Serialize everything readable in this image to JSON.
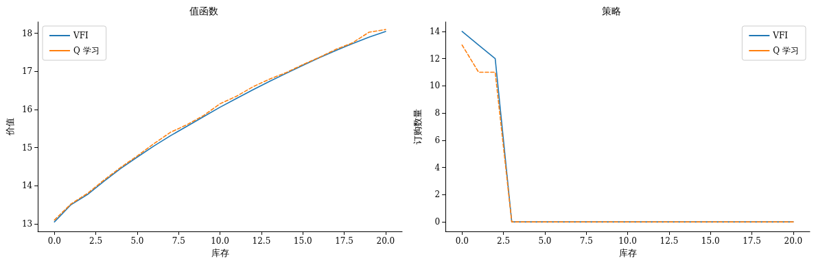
{
  "chart_data": [
    {
      "type": "line",
      "title": "值函数",
      "xlabel": "库存",
      "ylabel": "价值",
      "x": [
        0,
        1,
        2,
        3,
        4,
        5,
        6,
        7,
        8,
        9,
        10,
        11,
        12,
        13,
        14,
        15,
        16,
        17,
        18,
        19,
        20
      ],
      "series": [
        {
          "name": "VFI",
          "color": "#1f77b4",
          "line_style": "solid",
          "values": [
            13.05,
            13.5,
            13.77,
            14.12,
            14.45,
            14.75,
            15.04,
            15.31,
            15.56,
            15.81,
            16.06,
            16.29,
            16.52,
            16.74,
            16.95,
            17.16,
            17.36,
            17.55,
            17.73,
            17.9,
            18.05
          ]
        },
        {
          "name": "Q 学习",
          "color": "#ff7f0e",
          "line_style": "dashed",
          "values": [
            13.1,
            13.52,
            13.8,
            14.15,
            14.48,
            14.78,
            15.1,
            15.4,
            15.6,
            15.84,
            16.15,
            16.35,
            16.6,
            16.8,
            16.97,
            17.18,
            17.37,
            17.58,
            17.75,
            18.03,
            18.1
          ]
        }
      ],
      "xlim": [
        -1,
        21
      ],
      "xticks": [
        {
          "value": 0,
          "label": "0.0"
        },
        {
          "value": 2.5,
          "label": "2.5"
        },
        {
          "value": 5,
          "label": "5.0"
        },
        {
          "value": 7.5,
          "label": "7.5"
        },
        {
          "value": 10,
          "label": "10.0"
        },
        {
          "value": 12.5,
          "label": "12.5"
        },
        {
          "value": 15,
          "label": "15.0"
        },
        {
          "value": 17.5,
          "label": "17.5"
        },
        {
          "value": 20,
          "label": "20.0"
        }
      ],
      "ylim": [
        12.8,
        18.3
      ],
      "yticks": [
        13,
        14,
        15,
        16,
        17,
        18
      ],
      "legend": "top left",
      "grid": false,
      "marker": "none"
    },
    {
      "type": "line",
      "title": "策略",
      "xlabel": "库存",
      "ylabel": "订购数量",
      "x": [
        0,
        1,
        2,
        3,
        4,
        5,
        6,
        7,
        8,
        9,
        10,
        11,
        12,
        13,
        14,
        15,
        16,
        17,
        18,
        19,
        20
      ],
      "series": [
        {
          "name": "VFI",
          "color": "#1f77b4",
          "line_style": "solid",
          "values": [
            14,
            13,
            12,
            0,
            0,
            0,
            0,
            0,
            0,
            0,
            0,
            0,
            0,
            0,
            0,
            0,
            0,
            0,
            0,
            0,
            0
          ]
        },
        {
          "name": "Q 学习",
          "color": "#ff7f0e",
          "line_style": "dashed",
          "values": [
            13,
            11,
            11,
            0,
            0,
            0,
            0,
            0,
            0,
            0,
            0,
            0,
            0,
            0,
            0,
            0,
            0,
            0,
            0,
            0,
            0
          ]
        }
      ],
      "xlim": [
        -1,
        21
      ],
      "xticks": [
        {
          "value": 0,
          "label": "0.0"
        },
        {
          "value": 2.5,
          "label": "2.5"
        },
        {
          "value": 5,
          "label": "5.0"
        },
        {
          "value": 7.5,
          "label": "7.5"
        },
        {
          "value": 10,
          "label": "10.0"
        },
        {
          "value": 12.5,
          "label": "12.5"
        },
        {
          "value": 15,
          "label": "15.0"
        },
        {
          "value": 17.5,
          "label": "17.5"
        },
        {
          "value": 20,
          "label": "20.0"
        }
      ],
      "ylim": [
        -0.7,
        14.7
      ],
      "yticks": [
        0,
        2,
        4,
        6,
        8,
        10,
        12,
        14
      ],
      "legend": "top right",
      "grid": false,
      "marker": "none"
    }
  ]
}
